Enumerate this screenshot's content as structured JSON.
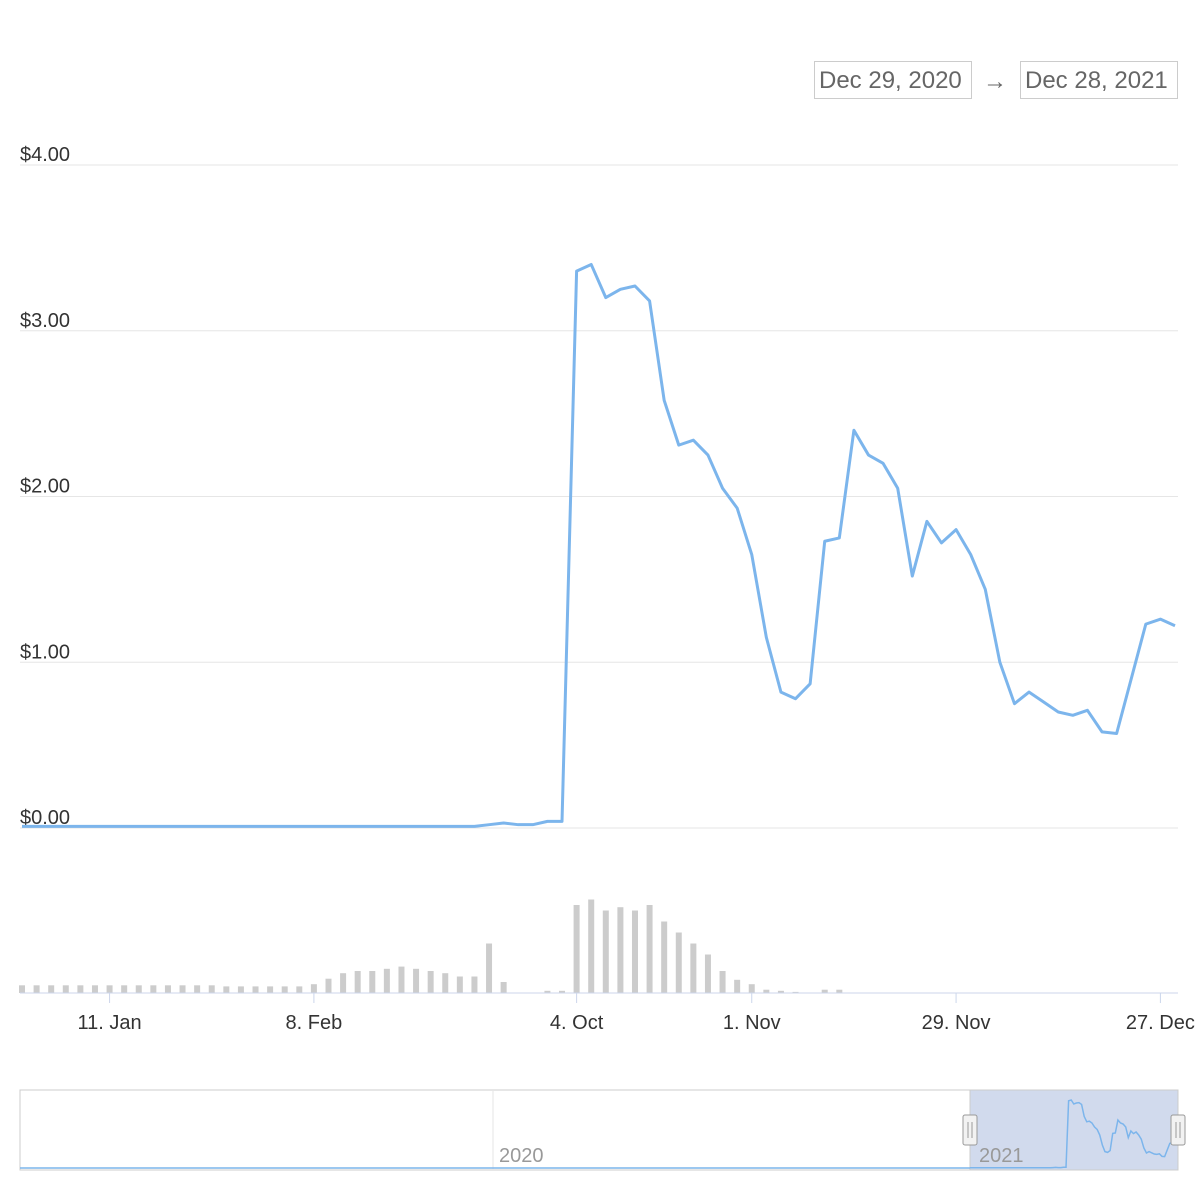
{
  "range_selector": {
    "from": "Dec 29, 2020",
    "separator": "→",
    "to": "Dec 28, 2021"
  },
  "chart_data": {
    "type": "line",
    "categories": [
      null,
      null,
      null,
      null,
      null,
      null,
      "11. Jan",
      null,
      null,
      null,
      null,
      null,
      null,
      null,
      null,
      null,
      null,
      null,
      null,
      null,
      "8. Feb",
      null,
      null,
      null,
      null,
      null,
      null,
      null,
      null,
      null,
      null,
      null,
      null,
      null,
      null,
      null,
      null,
      null,
      "4. Oct",
      null,
      null,
      null,
      null,
      null,
      null,
      null,
      null,
      null,
      null,
      null,
      "1. Nov",
      null,
      null,
      null,
      null,
      null,
      null,
      null,
      null,
      null,
      null,
      null,
      null,
      null,
      "29. Nov",
      null,
      null,
      null,
      null,
      null,
      null,
      null,
      null,
      null,
      null,
      null,
      null,
      null,
      "27. Dec",
      null
    ],
    "values": [
      0.01,
      0.01,
      0.01,
      0.01,
      0.01,
      0.01,
      0.01,
      0.01,
      0.01,
      0.01,
      0.01,
      0.01,
      0.01,
      0.01,
      0.01,
      0.01,
      0.01,
      0.01,
      0.01,
      0.01,
      0.01,
      0.01,
      0.01,
      0.01,
      0.01,
      0.01,
      0.01,
      0.01,
      0.01,
      0.01,
      0.01,
      0.01,
      0.02,
      0.03,
      0.02,
      0.02,
      0.04,
      0.04,
      3.36,
      3.4,
      3.2,
      3.25,
      3.27,
      3.18,
      2.58,
      2.31,
      2.34,
      2.25,
      2.05,
      1.93,
      1.65,
      1.15,
      0.82,
      0.78,
      0.87,
      1.73,
      1.75,
      2.4,
      2.25,
      2.2,
      2.05,
      1.52,
      1.85,
      1.72,
      1.8,
      1.65,
      1.44,
      1.0,
      0.75,
      0.82,
      0.76,
      0.7,
      0.68,
      0.71,
      0.58,
      0.57,
      0.9,
      1.23,
      1.26,
      1.22
    ],
    "color": "#7cb5ec",
    "volume": [
      7,
      7,
      7,
      7,
      7,
      7,
      7,
      7,
      7,
      7,
      7,
      7,
      7,
      7,
      6,
      6,
      6,
      6,
      6,
      6,
      8,
      13,
      18,
      20,
      20,
      22,
      24,
      22,
      20,
      18,
      15,
      15,
      45,
      10,
      0,
      0,
      2,
      2,
      80,
      85,
      75,
      78,
      75,
      80,
      65,
      55,
      45,
      35,
      20,
      12,
      8,
      3,
      2,
      1,
      0,
      3,
      3,
      0,
      0,
      0,
      0,
      0,
      0,
      0,
      0,
      0,
      0,
      0,
      0,
      0,
      0,
      0,
      0,
      0,
      0,
      0,
      0,
      0,
      0,
      0
    ],
    "volume_color": "#cccccc",
    "y2lim": [
      0,
      100
    ],
    "ylim": [
      0,
      4
    ],
    "yticks": [
      {
        "value": 0,
        "label": "$0.00"
      },
      {
        "value": 1,
        "label": "$1.00"
      },
      {
        "value": 2,
        "label": "$2.00"
      },
      {
        "value": 3,
        "label": "$3.00"
      },
      {
        "value": 4,
        "label": "$4.00"
      }
    ],
    "grid": true,
    "navigator_labels": [
      "2020",
      "2021"
    ]
  }
}
